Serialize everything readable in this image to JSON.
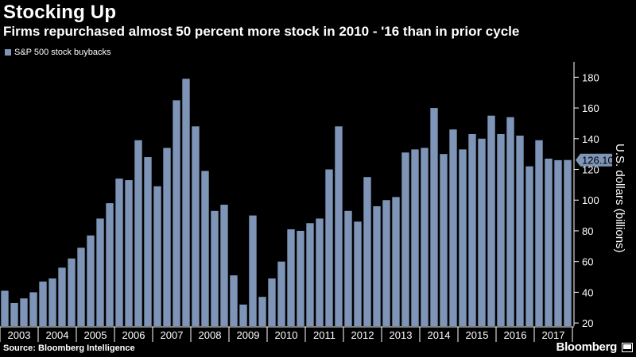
{
  "header": {
    "title": "Stocking Up",
    "subtitle": "Firms repurchased almost 50 percent more stock in 2010 - '16 than in prior cycle"
  },
  "legend": {
    "label": "S&P 500 stock buybacks"
  },
  "footer": {
    "source": "Source: Bloomberg Intelligence",
    "brand": "Bloomberg"
  },
  "colors": {
    "bar": "#7f95b8",
    "background": "#000000",
    "grid": "#3a3a3a",
    "text": "#ffffff"
  },
  "chart_data": {
    "type": "bar",
    "title": "Stocking Up",
    "subtitle": "Firms repurchased almost 50 percent more stock in 2010 - '16 than in prior cycle",
    "ylabel": "U.S. dollars (billions)",
    "xlabel": "",
    "ylim": [
      18,
      190
    ],
    "yticks": [
      20,
      40,
      60,
      80,
      100,
      120,
      140,
      160,
      180
    ],
    "grid": false,
    "legend_position": "top-left",
    "year_labels": [
      "2003",
      "2004",
      "2005",
      "2006",
      "2007",
      "2008",
      "2009",
      "2010",
      "2011",
      "2012",
      "2013",
      "2014",
      "2015",
      "2016",
      "2017"
    ],
    "last_value_label": "126.10",
    "series": [
      {
        "name": "S&P 500 stock buybacks",
        "values": [
          41,
          33,
          36,
          40,
          47,
          49,
          56,
          62,
          69,
          77,
          88,
          98,
          114,
          113,
          139,
          128,
          109,
          134,
          165,
          179,
          148,
          119,
          93,
          97,
          51,
          32,
          90,
          37,
          49,
          60,
          81,
          80,
          85,
          88,
          120,
          148,
          93,
          86,
          115,
          96,
          100,
          102,
          131,
          133,
          134,
          160,
          130,
          146,
          133,
          143,
          140,
          155,
          143,
          154,
          142,
          122,
          139,
          127,
          126,
          126.1
        ]
      }
    ]
  }
}
